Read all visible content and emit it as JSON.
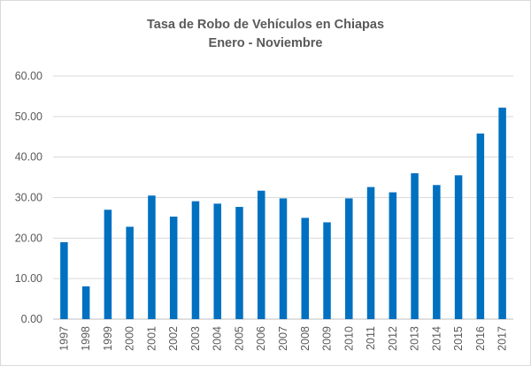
{
  "chart_data": {
    "type": "bar",
    "title": "Tasa de Robo de Vehículos en Chiapas",
    "subtitle": "Enero - Noviembre",
    "xlabel": "",
    "ylabel": "",
    "ylim": [
      0,
      60
    ],
    "yticks": [
      "0.00",
      "10.00",
      "20.00",
      "30.00",
      "40.00",
      "50.00",
      "60.00"
    ],
    "grid": true,
    "legend": "none",
    "bar_color": "#0070C0",
    "categories": [
      "1997",
      "1998",
      "1999",
      "2000",
      "2001",
      "2002",
      "2003",
      "2004",
      "2005",
      "2006",
      "2007",
      "2008",
      "2009",
      "2010",
      "2011",
      "2012",
      "2013",
      "2014",
      "2015",
      "2016",
      "2017"
    ],
    "values": [
      19.0,
      8.1,
      27.0,
      22.8,
      30.5,
      25.3,
      29.1,
      28.5,
      27.7,
      31.7,
      29.8,
      25.0,
      23.9,
      29.8,
      32.6,
      31.3,
      36.0,
      33.1,
      35.5,
      45.8,
      52.2
    ]
  }
}
